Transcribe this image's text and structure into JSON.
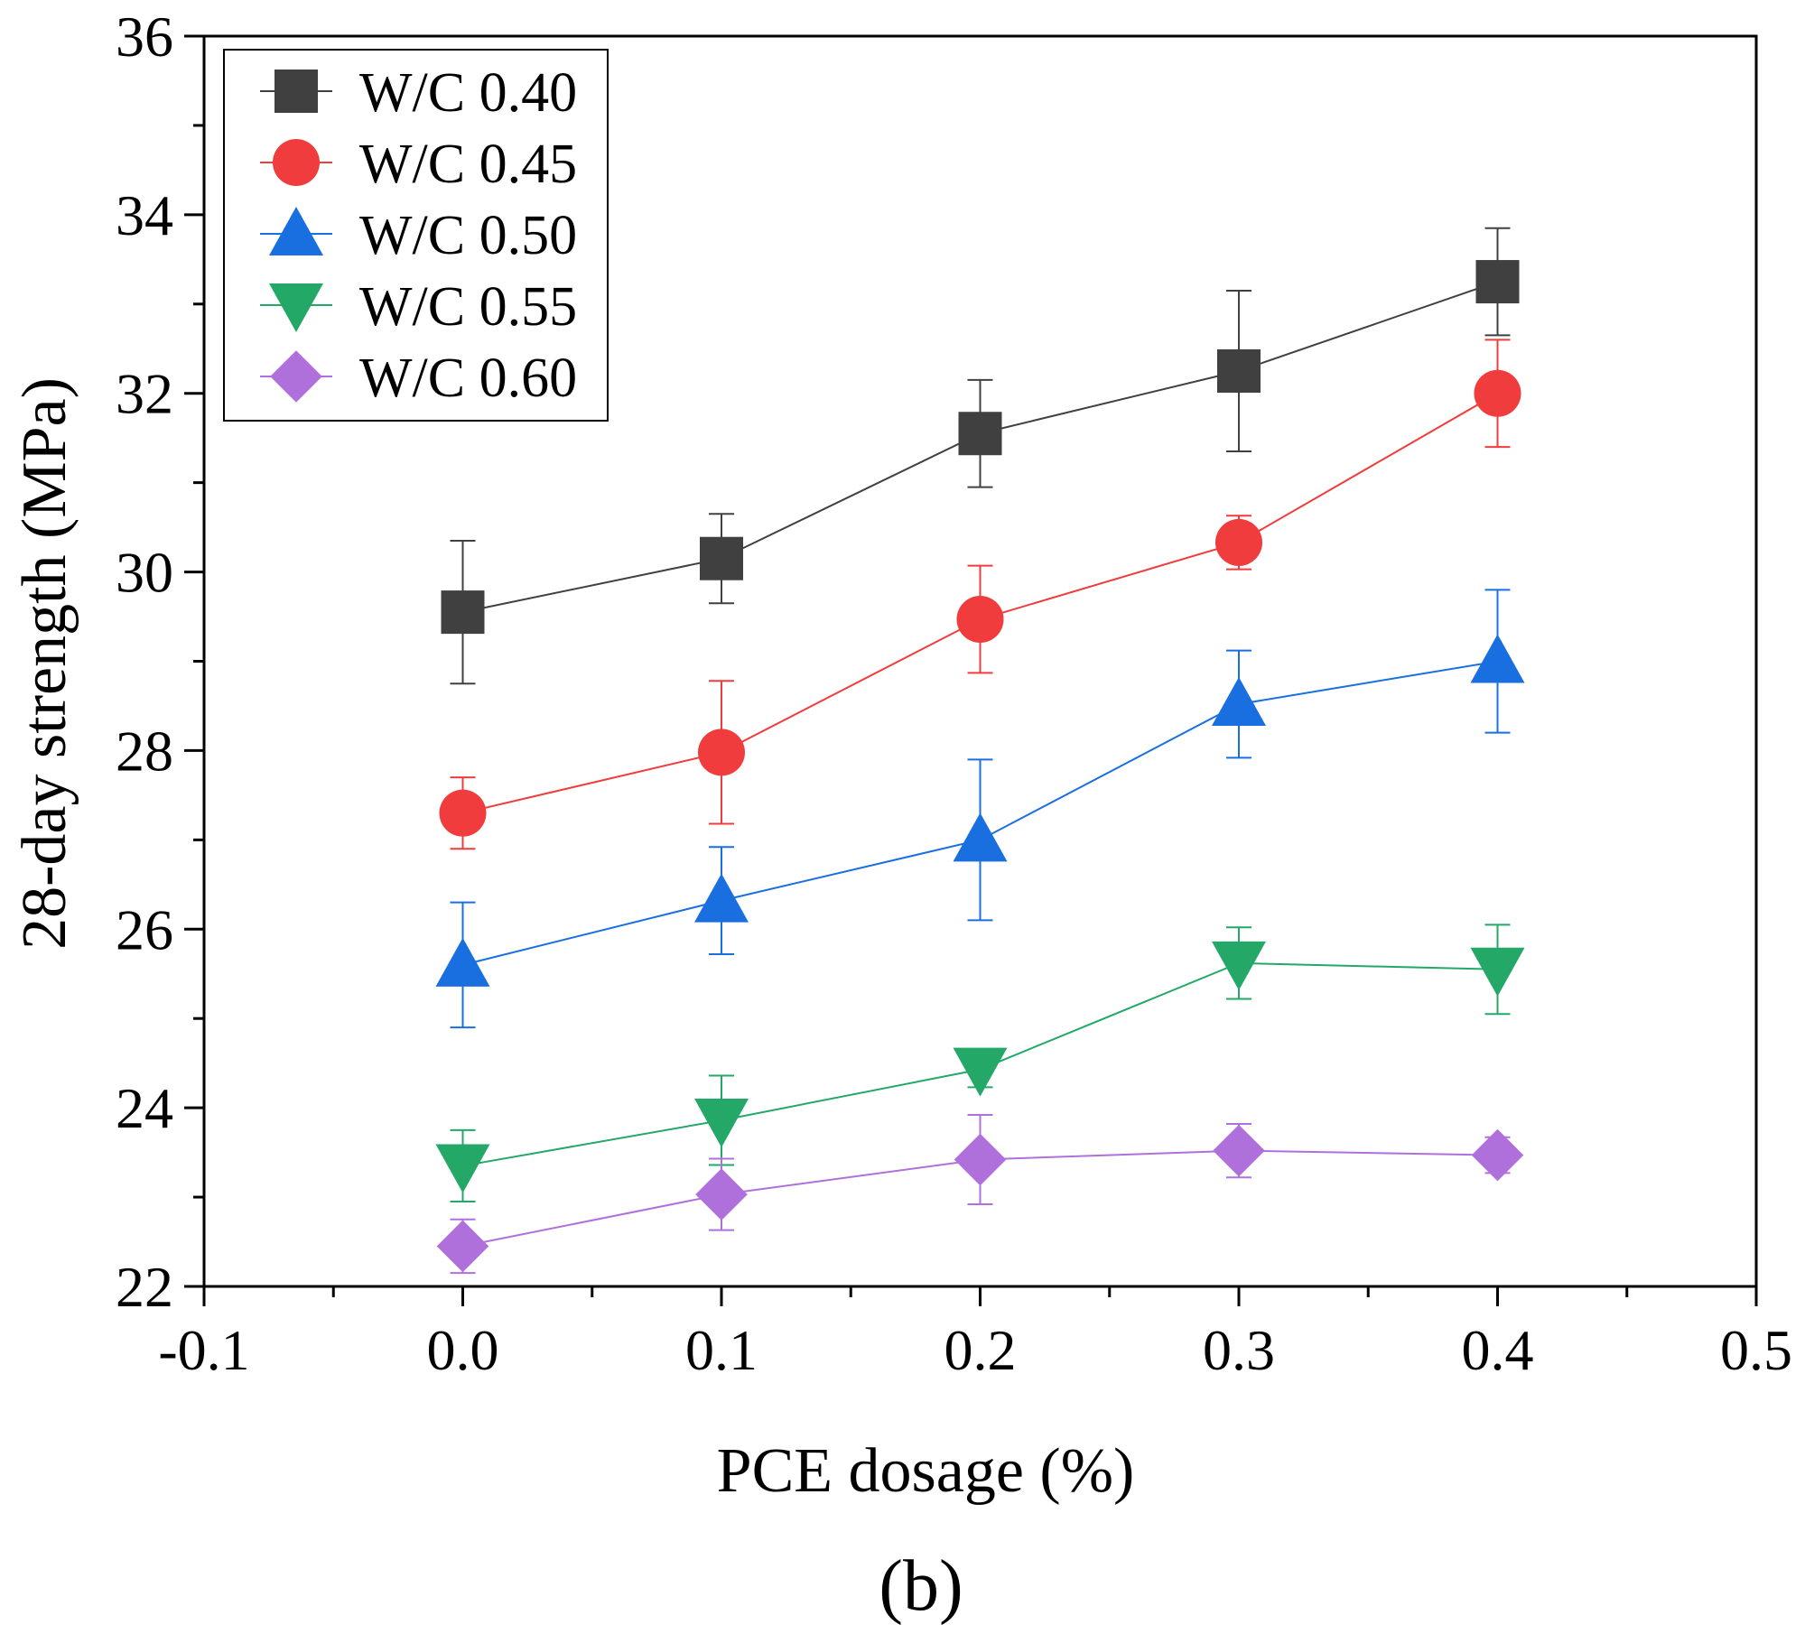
{
  "chart_data": {
    "type": "line",
    "title": "",
    "xlabel": "PCE dosage (%)",
    "ylabel": "28-day strength (MPa)",
    "xlim": [
      -0.1,
      0.5
    ],
    "ylim": [
      22,
      36
    ],
    "x_ticks": [
      -0.1,
      0.0,
      0.1,
      0.2,
      0.3,
      0.4,
      0.5
    ],
    "x_tick_labels": [
      "-0.1",
      "0.0",
      "0.1",
      "0.2",
      "0.3",
      "0.4",
      "0.5"
    ],
    "y_ticks": [
      22,
      24,
      26,
      28,
      30,
      32,
      34,
      36
    ],
    "y_tick_labels": [
      "22",
      "24",
      "26",
      "28",
      "30",
      "32",
      "34",
      "36"
    ],
    "grid": false,
    "legend_position": "top-left",
    "x": [
      0.0,
      0.1,
      0.2,
      0.3,
      0.4
    ],
    "series": [
      {
        "name": "W/C 0.40",
        "color": "#404040",
        "marker": "square",
        "values": [
          29.55,
          30.15,
          31.55,
          32.25,
          33.25
        ],
        "errors": [
          0.8,
          0.5,
          0.6,
          0.9,
          0.6
        ]
      },
      {
        "name": "W/C 0.45",
        "color": "#f03c3c",
        "marker": "circle",
        "values": [
          27.3,
          27.98,
          29.47,
          30.33,
          32.0
        ],
        "errors": [
          0.4,
          0.8,
          0.6,
          0.3,
          0.6
        ]
      },
      {
        "name": "W/C 0.50",
        "color": "#1a6fe0",
        "marker": "triangle-up",
        "values": [
          25.6,
          26.32,
          27.0,
          28.52,
          29.0
        ],
        "errors": [
          0.7,
          0.6,
          0.9,
          0.6,
          0.8
        ]
      },
      {
        "name": "W/C 0.55",
        "color": "#23a867",
        "marker": "triangle-down",
        "values": [
          23.35,
          23.86,
          24.43,
          25.62,
          25.55
        ],
        "errors": [
          0.4,
          0.5,
          0.2,
          0.4,
          0.5
        ]
      },
      {
        "name": "W/C 0.60",
        "color": "#b070dc",
        "marker": "diamond",
        "values": [
          22.45,
          23.03,
          23.42,
          23.52,
          23.47
        ],
        "errors": [
          0.3,
          0.4,
          0.5,
          0.3,
          0.2
        ]
      }
    ],
    "panel_label": "(b)"
  }
}
